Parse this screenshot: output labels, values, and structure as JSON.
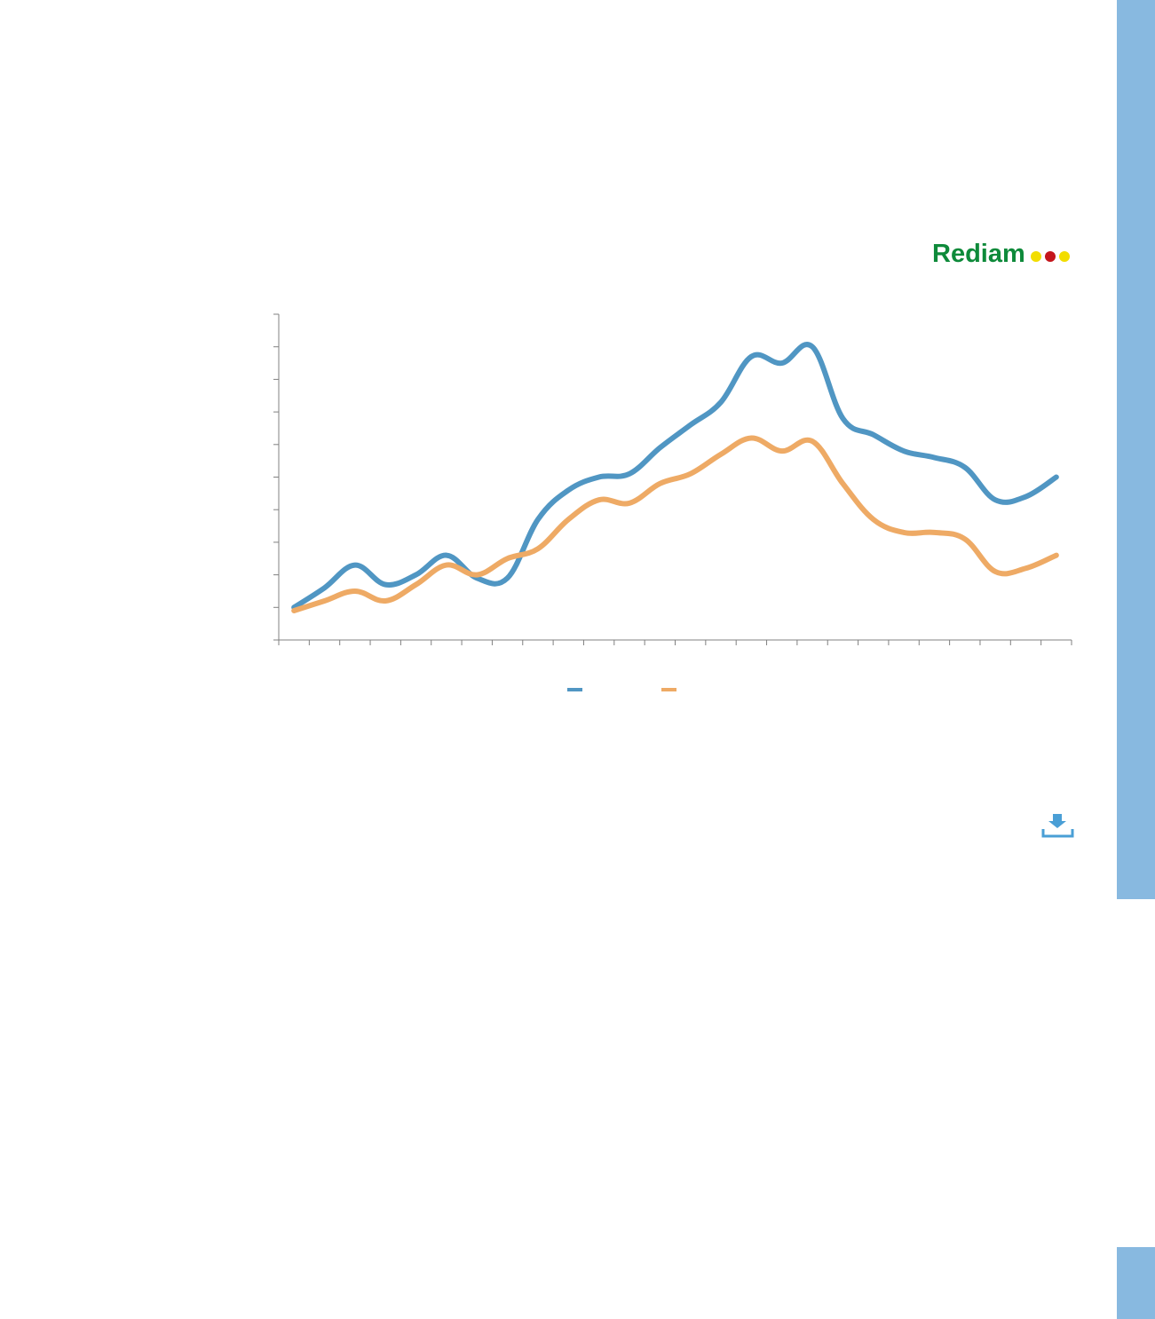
{
  "brand": {
    "name": "Rediam",
    "name_color": "#0e8a3a",
    "dot_colors": [
      "#f2dd00",
      "#c4161c",
      "#f2dd00"
    ]
  },
  "colors": {
    "side_panel": "#88b9e0",
    "axis": "#808080",
    "series_a": "#5096c3",
    "series_b": "#eeaa65",
    "download_icon": "#4a9fd6"
  },
  "icons": {
    "download": "download-icon"
  },
  "chart_data": {
    "type": "line",
    "title": "",
    "xlabel": "",
    "ylabel": "",
    "x_tick_count": 26,
    "y_tick_count": 10,
    "ylim": [
      0,
      10
    ],
    "grid": false,
    "legend": "bottom-center",
    "x": [
      1,
      2,
      3,
      4,
      5,
      6,
      7,
      8,
      9,
      10,
      11,
      12,
      13,
      14,
      15,
      16,
      17,
      18,
      19,
      20,
      21,
      22,
      23,
      24,
      25,
      26
    ],
    "series": [
      {
        "values": [
          1.0,
          1.6,
          2.3,
          1.7,
          2.0,
          2.6,
          1.9,
          1.9,
          3.7,
          4.6,
          5.0,
          5.1,
          5.9,
          6.6,
          7.3,
          8.7,
          8.5,
          9.0,
          6.8,
          6.3,
          5.8,
          5.6,
          5.3,
          4.3,
          4.4,
          5.0
        ]
      },
      {
        "values": [
          0.9,
          1.2,
          1.5,
          1.2,
          1.7,
          2.3,
          2.0,
          2.5,
          2.8,
          3.7,
          4.3,
          4.2,
          4.8,
          5.1,
          5.7,
          6.2,
          5.8,
          6.1,
          4.8,
          3.7,
          3.3,
          3.3,
          3.1,
          2.1,
          2.2,
          2.6
        ]
      }
    ]
  }
}
